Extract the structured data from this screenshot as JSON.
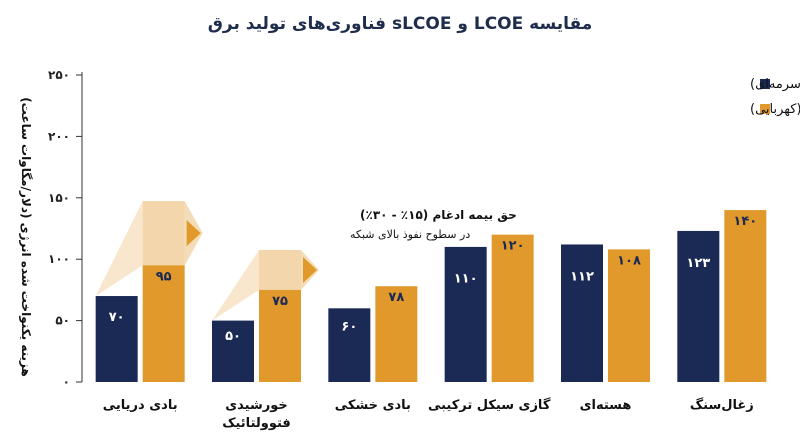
{
  "chart_data": {
    "type": "bar",
    "title": "مقایسه LCOE و sLCOE فناوری‌های تولید برق",
    "ylabel": "هزینه یکنواخت شده انرژی (دلار/مگاوات ساعت)",
    "ylim": [
      0,
      250
    ],
    "yticks": [
      0,
      50,
      100,
      150,
      200,
      250
    ],
    "ytick_labels": [
      "۰",
      "۵۰",
      "۱۰۰",
      "۱۵۰",
      "۲۰۰",
      "۲۵۰"
    ],
    "grid": false,
    "legend_position": "top-right",
    "categories": [
      [
        "بادی دریایی"
      ],
      [
        "خورشیدی",
        "فتوولتائیک"
      ],
      [
        "بادی خشکی"
      ],
      [
        "گازی سیکل ترکیبی"
      ],
      [
        "هسته‌ای"
      ],
      [
        "زغال‌سنگ"
      ]
    ],
    "series": [
      {
        "name": "LCOE مستقل (سرمه‌ای)",
        "color": "#1b2a55",
        "values": [
          70,
          50,
          60,
          110,
          112,
          123
        ],
        "labels": [
          "۷۰",
          "۵۰",
          "۶۰",
          "۱۱۰",
          "۱۱۲",
          "۱۲۳"
        ]
      },
      {
        "name": "sLCOE تنظیم‌شده (کهربایی)",
        "color": "#e0992a",
        "values": [
          95,
          75,
          78,
          120,
          108,
          140
        ],
        "labels": [
          "۹۵",
          "۷۵",
          "۷۸",
          "۱۲۰",
          "۱۰۸",
          "۱۴۰"
        ]
      }
    ],
    "annotation": {
      "line1": "حق بیمه ادغام (۱۵٪ - ۳۰٪)",
      "line2": "در سطوح نفوذ بالای شبکه"
    },
    "colors": {
      "arrow": "#f3d6ab",
      "arrow_head": "#e0992a",
      "axis": "#333333"
    }
  }
}
